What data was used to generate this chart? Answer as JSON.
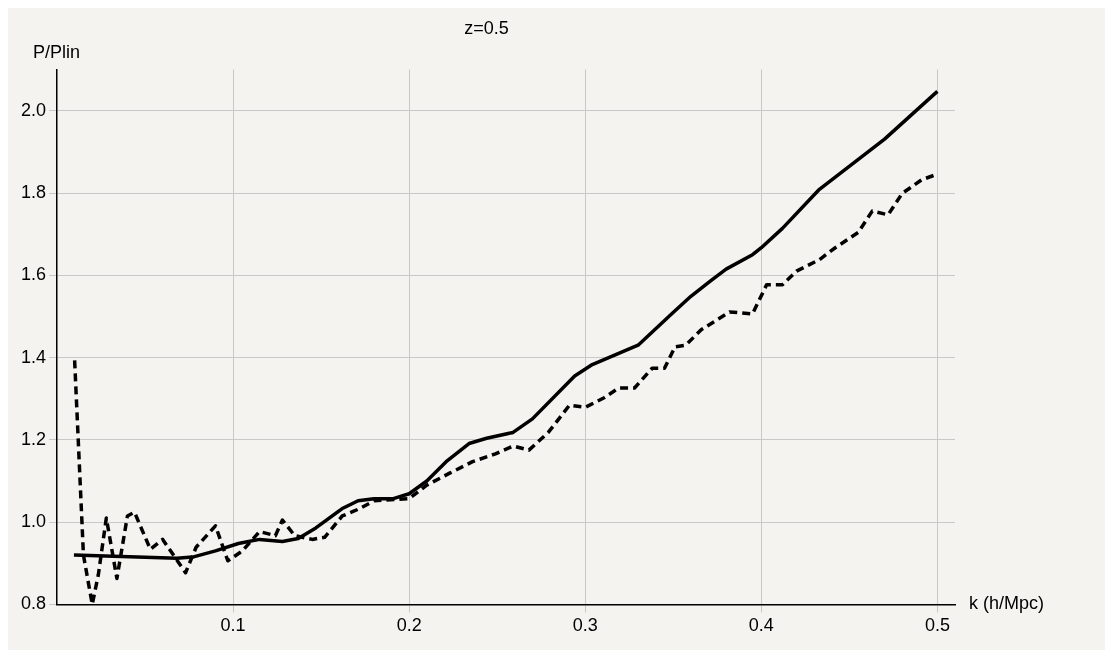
{
  "chart_data": {
    "type": "line",
    "title": "z=0.5",
    "xlabel": "k (h/Mpc)",
    "ylabel": "P/Plin",
    "xlim": [
      0,
      0.51
    ],
    "ylim": [
      0.8,
      2.1
    ],
    "xticks": [
      0.1,
      0.2,
      0.3,
      0.4,
      0.5
    ],
    "yticks": [
      0.8,
      {
        "value": 1,
        "label": "1.0"
      },
      1.2,
      1.4,
      1.6,
      1.8,
      {
        "value": 2,
        "label": "2.0"
      }
    ],
    "grid": true,
    "series": [
      {
        "color": "#000000",
        "line_style": "solid",
        "x": [
          0.0096,
          0.068,
          0.077,
          0.09,
          0.103,
          0.115,
          0.128,
          0.137,
          0.147,
          0.162,
          0.171,
          0.18,
          0.191,
          0.2,
          0.21,
          0.221,
          0.234,
          0.244,
          0.259,
          0.27,
          0.294,
          0.304,
          0.33,
          0.349,
          0.36,
          0.371,
          0.38,
          0.395,
          0.4,
          0.412,
          0.433,
          0.47,
          0.5
        ],
        "values": [
          0.92,
          0.912,
          0.915,
          0.93,
          0.948,
          0.958,
          0.953,
          0.96,
          0.986,
          1.033,
          1.052,
          1.057,
          1.057,
          1.069,
          1.1,
          1.147,
          1.191,
          1.204,
          1.218,
          1.251,
          1.355,
          1.383,
          1.43,
          1.506,
          1.549,
          1.586,
          1.615,
          1.65,
          1.667,
          1.714,
          1.809,
          1.931,
          2.047
        ]
      },
      {
        "color": "#000000",
        "line_style": "dashed",
        "x": [
          0.01,
          0.012,
          0.015,
          0.02,
          0.0235,
          0.028,
          0.034,
          0.04,
          0.044,
          0.053,
          0.06,
          0.073,
          0.079,
          0.09,
          0.097,
          0.105,
          0.115,
          0.124,
          0.128,
          0.135,
          0.145,
          0.152,
          0.162,
          0.172,
          0.18,
          0.2,
          0.21,
          0.223,
          0.236,
          0.249,
          0.259,
          0.268,
          0.279,
          0.291,
          0.3,
          0.311,
          0.319,
          0.328,
          0.338,
          0.345,
          0.351,
          0.357,
          0.366,
          0.382,
          0.395,
          0.403,
          0.412,
          0.42,
          0.433,
          0.442,
          0.455,
          0.463,
          0.472,
          0.48,
          0.491,
          0.5
        ],
        "values": [
          1.393,
          1.204,
          0.92,
          0.8,
          0.873,
          1.01,
          0.863,
          1.015,
          1.024,
          0.934,
          0.958,
          0.877,
          0.939,
          0.991,
          0.906,
          0.929,
          0.977,
          0.967,
          1.005,
          0.967,
          0.958,
          0.963,
          1.015,
          1.033,
          1.052,
          1.057,
          1.09,
          1.119,
          1.147,
          1.166,
          1.185,
          1.175,
          1.218,
          1.284,
          1.279,
          1.303,
          1.326,
          1.326,
          1.374,
          1.374,
          1.426,
          1.43,
          1.468,
          1.511,
          1.506,
          1.577,
          1.577,
          1.61,
          1.638,
          1.667,
          1.704,
          1.756,
          1.747,
          1.799,
          1.832,
          1.846
        ]
      }
    ]
  }
}
